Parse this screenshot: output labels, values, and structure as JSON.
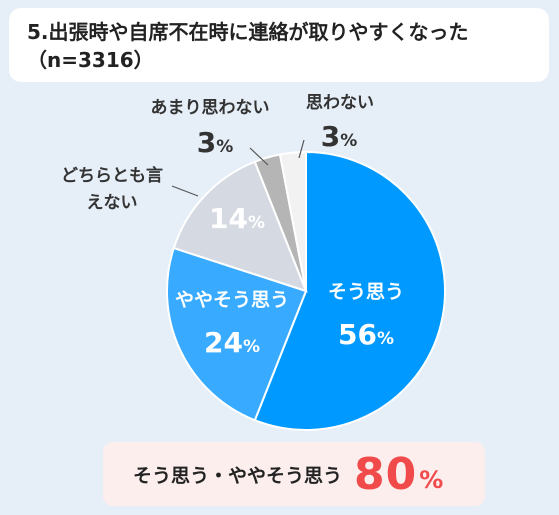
{
  "title": {
    "line1": "5.出張時や自席不在時に連絡が取りやすくなった",
    "line2": "（n=3316）"
  },
  "chart_data": {
    "type": "pie",
    "start": "top",
    "direction": "clockwise",
    "unit": "%",
    "slices": [
      {
        "label": "そう思う",
        "value": 56,
        "color": "#0099ff",
        "label_color": "#ffffff",
        "label_inside": true
      },
      {
        "label": "ややそう思う",
        "value": 24,
        "color": "#38aaff",
        "label_color": "#ffffff",
        "label_inside": true
      },
      {
        "label": "どちらとも言えない",
        "label_lines": [
          "どちらとも言",
          "えない"
        ],
        "value": 14,
        "color": "#d4d9e2",
        "label_color": "#ffffff",
        "label_inside": false,
        "value_inside": true
      },
      {
        "label": "あまり思わない",
        "value": 3,
        "color": "#b5b5b5",
        "label_color": "#333333",
        "label_inside": false
      },
      {
        "label": "思わない",
        "value": 3,
        "color": "#f2f2f2",
        "label_color": "#333333",
        "label_inside": false
      }
    ]
  },
  "summary": {
    "label": "そう思う・ややそう思う",
    "value": "80",
    "unit": "%"
  }
}
